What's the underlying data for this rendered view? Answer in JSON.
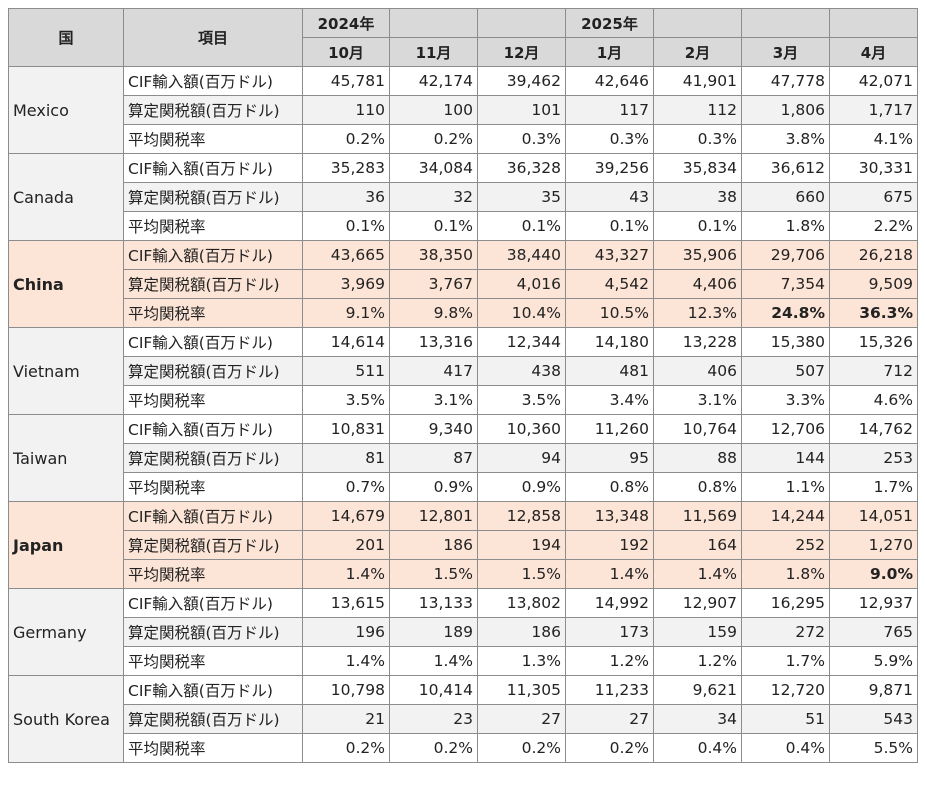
{
  "header": {
    "country": "国",
    "item": "項目",
    "year_2024": "2024年",
    "year_2025": "2025年",
    "months": [
      "10月",
      "11月",
      "12月",
      "1月",
      "2月",
      "3月",
      "4月"
    ]
  },
  "metrics": [
    "CIF輸入額(百万ドル)",
    "算定関税額(百万ドル)",
    "平均関税率"
  ],
  "highlight_color": "#fce4d6",
  "shade_color": "#f2f2f2",
  "countries": [
    {
      "name": "Mexico",
      "highlight": false,
      "rows": [
        [
          "45,781",
          "42,174",
          "39,462",
          "42,646",
          "41,901",
          "47,778",
          "42,071"
        ],
        [
          "110",
          "100",
          "101",
          "117",
          "112",
          "1,806",
          "1,717"
        ],
        [
          "0.2%",
          "0.2%",
          "0.3%",
          "0.3%",
          "0.3%",
          "3.8%",
          "4.1%"
        ]
      ],
      "bold": []
    },
    {
      "name": "Canada",
      "highlight": false,
      "rows": [
        [
          "35,283",
          "34,084",
          "36,328",
          "39,256",
          "35,834",
          "36,612",
          "30,331"
        ],
        [
          "36",
          "32",
          "35",
          "43",
          "38",
          "660",
          "675"
        ],
        [
          "0.1%",
          "0.1%",
          "0.1%",
          "0.1%",
          "0.1%",
          "1.8%",
          "2.2%"
        ]
      ],
      "bold": []
    },
    {
      "name": "China",
      "highlight": true,
      "rows": [
        [
          "43,665",
          "38,350",
          "38,440",
          "43,327",
          "35,906",
          "29,706",
          "26,218"
        ],
        [
          "3,969",
          "3,767",
          "4,016",
          "4,542",
          "4,406",
          "7,354",
          "9,509"
        ],
        [
          "9.1%",
          "9.8%",
          "10.4%",
          "10.5%",
          "12.3%",
          "24.8%",
          "36.3%"
        ]
      ],
      "bold": [
        [
          2,
          5
        ],
        [
          2,
          6
        ]
      ]
    },
    {
      "name": "Vietnam",
      "highlight": false,
      "rows": [
        [
          "14,614",
          "13,316",
          "12,344",
          "14,180",
          "13,228",
          "15,380",
          "15,326"
        ],
        [
          "511",
          "417",
          "438",
          "481",
          "406",
          "507",
          "712"
        ],
        [
          "3.5%",
          "3.1%",
          "3.5%",
          "3.4%",
          "3.1%",
          "3.3%",
          "4.6%"
        ]
      ],
      "bold": []
    },
    {
      "name": "Taiwan",
      "highlight": false,
      "rows": [
        [
          "10,831",
          "9,340",
          "10,360",
          "11,260",
          "10,764",
          "12,706",
          "14,762"
        ],
        [
          "81",
          "87",
          "94",
          "95",
          "88",
          "144",
          "253"
        ],
        [
          "0.7%",
          "0.9%",
          "0.9%",
          "0.8%",
          "0.8%",
          "1.1%",
          "1.7%"
        ]
      ],
      "bold": []
    },
    {
      "name": "Japan",
      "highlight": true,
      "rows": [
        [
          "14,679",
          "12,801",
          "12,858",
          "13,348",
          "11,569",
          "14,244",
          "14,051"
        ],
        [
          "201",
          "186",
          "194",
          "192",
          "164",
          "252",
          "1,270"
        ],
        [
          "1.4%",
          "1.5%",
          "1.5%",
          "1.4%",
          "1.4%",
          "1.8%",
          "9.0%"
        ]
      ],
      "bold": [
        [
          2,
          6
        ]
      ]
    },
    {
      "name": "Germany",
      "highlight": false,
      "rows": [
        [
          "13,615",
          "13,133",
          "13,802",
          "14,992",
          "12,907",
          "16,295",
          "12,937"
        ],
        [
          "196",
          "189",
          "186",
          "173",
          "159",
          "272",
          "765"
        ],
        [
          "1.4%",
          "1.4%",
          "1.3%",
          "1.2%",
          "1.2%",
          "1.7%",
          "5.9%"
        ]
      ],
      "bold": []
    },
    {
      "name": "South Korea",
      "highlight": false,
      "rows": [
        [
          "10,798",
          "10,414",
          "11,305",
          "11,233",
          "9,621",
          "12,720",
          "9,871"
        ],
        [
          "21",
          "23",
          "27",
          "27",
          "34",
          "51",
          "543"
        ],
        [
          "0.2%",
          "0.2%",
          "0.2%",
          "0.2%",
          "0.4%",
          "0.4%",
          "5.5%"
        ]
      ],
      "bold": []
    }
  ]
}
